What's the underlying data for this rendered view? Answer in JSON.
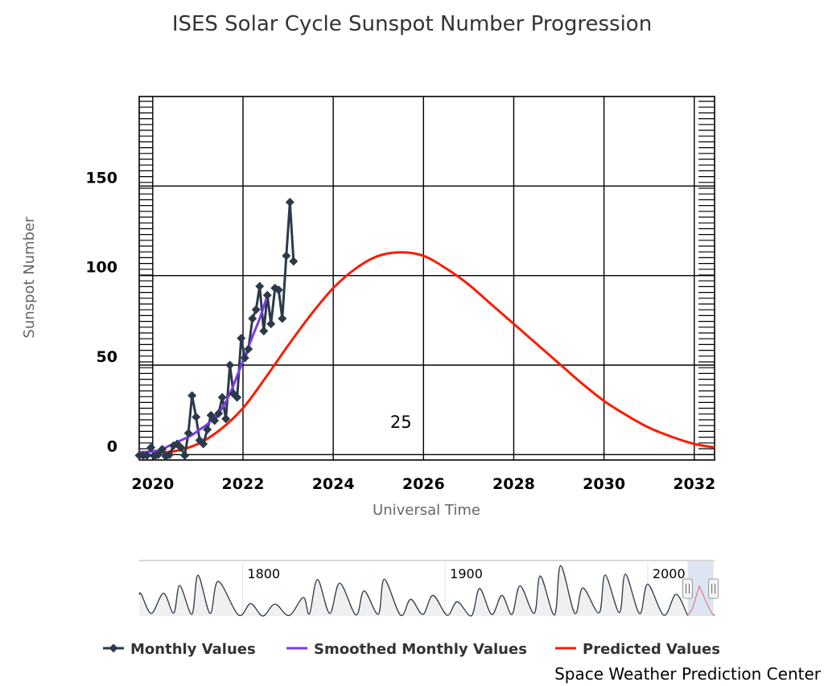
{
  "colors": {
    "monthly": "#2b3a4a",
    "smoothed": "#7c3aed",
    "predicted": "#ff1a00",
    "grid": "#000000",
    "navigator_fill": "#f0f0f0",
    "navigator_selection": "#c6d2ea"
  },
  "chart_data": {
    "type": "line",
    "title": "ISES Solar Cycle Sunspot Number Progression",
    "xlabel": "Universal Time",
    "ylabel": "Sunspot Number",
    "xlim": [
      2019.7,
      2032.45
    ],
    "ylim": [
      -3,
      200
    ],
    "x_ticks": [
      "2020",
      "2022",
      "2024",
      "2026",
      "2028",
      "2030",
      "2032"
    ],
    "x_tick_values": [
      2020,
      2022,
      2024,
      2026,
      2028,
      2030,
      2032
    ],
    "y_ticks": [
      "0",
      "50",
      "100",
      "150"
    ],
    "y_tick_values": [
      0,
      50,
      100,
      150
    ],
    "grid": true,
    "legend_placement": "bottom",
    "annotation": "25",
    "annotation_position": [
      2025.5,
      15
    ],
    "series": [
      {
        "name": "Monthly Values",
        "x": [
          2019.7,
          2019.79,
          2019.87,
          2019.96,
          2020.04,
          2020.12,
          2020.21,
          2020.29,
          2020.37,
          2020.46,
          2020.54,
          2020.62,
          2020.71,
          2020.79,
          2020.87,
          2020.96,
          2021.04,
          2021.12,
          2021.21,
          2021.29,
          2021.37,
          2021.46,
          2021.54,
          2021.62,
          2021.71,
          2021.79,
          2021.87,
          2021.96,
          2022.04,
          2022.12,
          2022.21,
          2022.29,
          2022.37,
          2022.46,
          2022.54,
          2022.62,
          2022.71,
          2022.79,
          2022.87,
          2022.96,
          2023.04,
          2023.12
        ],
        "values": [
          -0.5,
          -0.5,
          -0.5,
          4,
          -1,
          0,
          3,
          -1,
          0,
          5,
          6,
          4,
          -0.5,
          12,
          33,
          21,
          8,
          6,
          14,
          22,
          19,
          23,
          32,
          20,
          50,
          34,
          32,
          65,
          54,
          59,
          76,
          81,
          94,
          69,
          89,
          73,
          93,
          92,
          76,
          111,
          141,
          108
        ]
      },
      {
        "name": "Smoothed Monthly Values",
        "x": [
          2019.7,
          2019.87,
          2020.04,
          2020.21,
          2020.37,
          2020.54,
          2020.71,
          2020.87,
          2021.04,
          2021.21,
          2021.37,
          2021.54,
          2021.71,
          2021.87,
          2022.04,
          2022.21,
          2022.37,
          2022.54
        ],
        "values": [
          1.5,
          1.5,
          2,
          3,
          5,
          7,
          9,
          11,
          14,
          17,
          21,
          26,
          34,
          44,
          55,
          66,
          76,
          89
        ]
      },
      {
        "name": "Predicted Values",
        "x": [
          2020.0,
          2020.5,
          2021.0,
          2021.5,
          2022.0,
          2022.5,
          2023.0,
          2023.5,
          2024.0,
          2024.5,
          2025.0,
          2025.5,
          2026.0,
          2026.5,
          2027.0,
          2027.5,
          2028.0,
          2028.5,
          2029.0,
          2029.5,
          2030.0,
          2030.5,
          2031.0,
          2031.5,
          2032.0,
          2032.45
        ],
        "values": [
          1,
          2,
          6,
          14,
          26,
          43,
          61,
          78,
          93,
          104,
          111,
          113,
          111,
          104,
          95,
          84,
          73,
          62,
          51,
          40,
          30,
          22,
          15,
          10,
          6,
          4
        ]
      }
    ]
  },
  "navigator": {
    "labels": [
      "1800",
      "1900",
      "2000"
    ],
    "label_years": [
      1800,
      1900,
      2000
    ],
    "range": [
      1749,
      2033
    ],
    "selection": [
      2019.7,
      2032.45
    ],
    "history_x": [
      1749,
      1750,
      1755,
      1761,
      1766,
      1769,
      1775,
      1778,
      1784,
      1788,
      1798,
      1804,
      1810,
      1816,
      1823,
      1830,
      1833,
      1837,
      1843,
      1848,
      1856,
      1860,
      1867,
      1870,
      1878,
      1883,
      1889,
      1894,
      1901,
      1906,
      1913,
      1917,
      1923,
      1928,
      1933,
      1937,
      1944,
      1947,
      1954,
      1957,
      1964,
      1968,
      1976,
      1979,
      1986,
      1989,
      1996,
      2000,
      2008,
      2014,
      2019.7
    ],
    "history_values": [
      80,
      83,
      10,
      86,
      11,
      115,
      7,
      154,
      10,
      131,
      4,
      47,
      0,
      45,
      2,
      70,
      8,
      138,
      10,
      124,
      4,
      95,
      7,
      139,
      3,
      63,
      6,
      78,
      3,
      54,
      1,
      104,
      6,
      78,
      6,
      114,
      10,
      151,
      4,
      190,
      10,
      106,
      12,
      155,
      13,
      158,
      9,
      120,
      3,
      82,
      2
    ],
    "predicted_x": [
      2019.7,
      2022,
      2025.5,
      2029,
      2032,
      2033
    ],
    "predicted_values": [
      1,
      26,
      113,
      51,
      6,
      3
    ]
  },
  "credit": "Space Weather Prediction Center"
}
